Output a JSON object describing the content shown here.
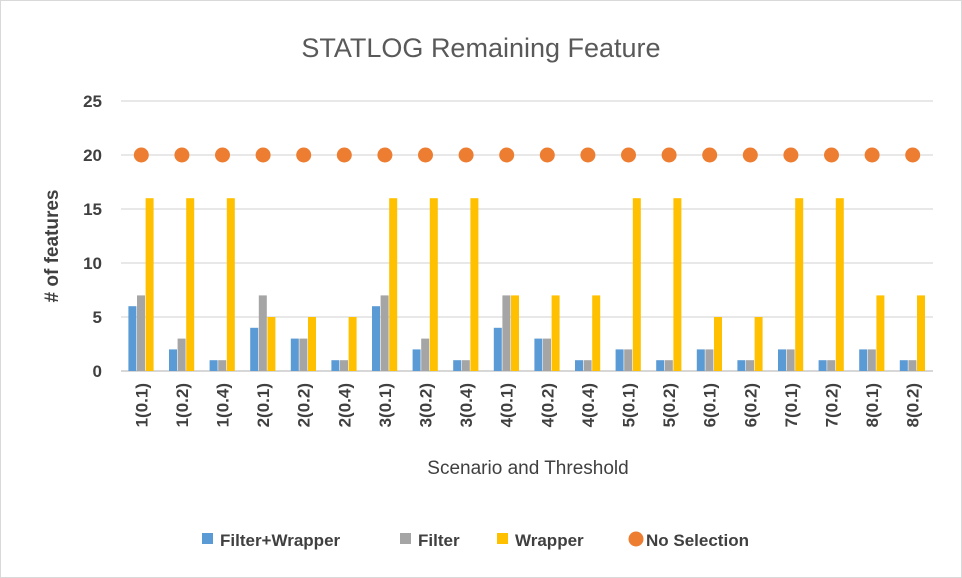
{
  "chart_data": {
    "type": "bar",
    "title": "STATLOG Remaining Feature",
    "xlabel": "Scenario and Threshold",
    "ylabel": "# of features",
    "ylim": [
      0,
      25
    ],
    "yticks": [
      0,
      5,
      10,
      15,
      20,
      25
    ],
    "grid": true,
    "legend_position": "bottom",
    "categories": [
      "1(0.1)",
      "1(0.2)",
      "1(0.4)",
      "2(0.1)",
      "2(0.2)",
      "2(0.4)",
      "3(0.1)",
      "3(0.2)",
      "3(0.4)",
      "4(0.1)",
      "4(0.2)",
      "4(0.4)",
      "5(0.1)",
      "5(0.2)",
      "6(0.1)",
      "6(0.2)",
      "7(0.1)",
      "7(0.2)",
      "8(0.1)",
      "8(0.2)"
    ],
    "series": [
      {
        "name": "Filter+Wrapper",
        "kind": "bar",
        "color": "#5B9BD5",
        "values": [
          6,
          2,
          1,
          4,
          3,
          1,
          6,
          2,
          1,
          4,
          3,
          1,
          2,
          1,
          2,
          1,
          2,
          1,
          2,
          1
        ]
      },
      {
        "name": "Filter",
        "kind": "bar",
        "color": "#A5A5A5",
        "values": [
          7,
          3,
          1,
          7,
          3,
          1,
          7,
          3,
          1,
          7,
          3,
          1,
          2,
          1,
          2,
          1,
          2,
          1,
          2,
          1
        ]
      },
      {
        "name": "Wrapper",
        "kind": "bar",
        "color": "#FFC000",
        "values": [
          16,
          16,
          16,
          5,
          5,
          5,
          16,
          16,
          16,
          7,
          7,
          7,
          16,
          16,
          5,
          5,
          16,
          16,
          7,
          7
        ]
      },
      {
        "name": "No Selection",
        "kind": "marker",
        "color": "#ED7D31",
        "values": [
          20,
          20,
          20,
          20,
          20,
          20,
          20,
          20,
          20,
          20,
          20,
          20,
          20,
          20,
          20,
          20,
          20,
          20,
          20,
          20
        ]
      }
    ]
  }
}
